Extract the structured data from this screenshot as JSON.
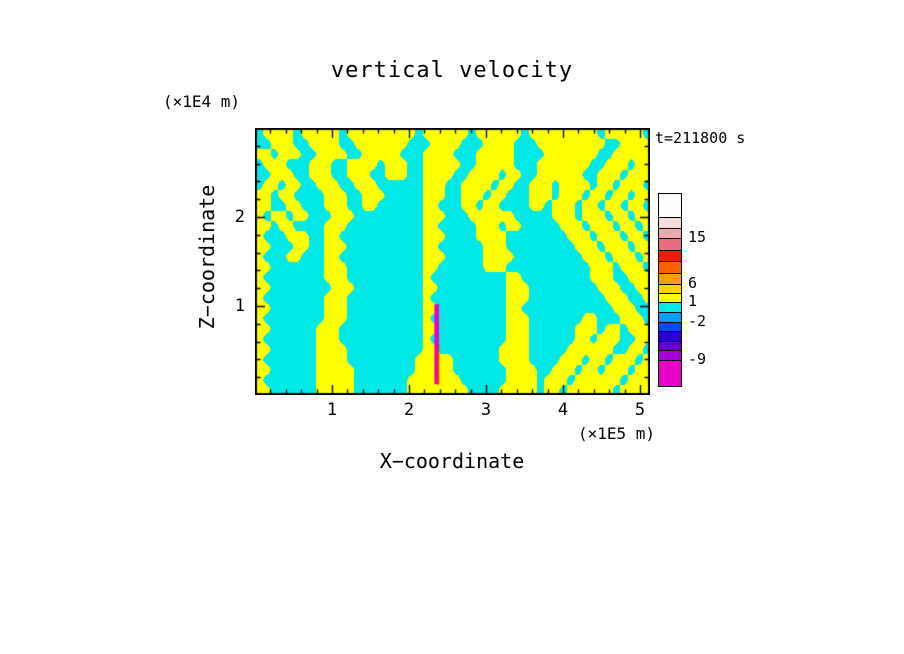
{
  "chart_data": {
    "type": "heatmap",
    "title": "vertical velocity",
    "time_label": "t=211800 s",
    "xlabel": "X−coordinate",
    "ylabel": "Z−coordinate",
    "x_unit_label": "(×1E5 m)",
    "z_unit_label": "(×1E4 m)",
    "x_range": [
      0,
      5.13
    ],
    "z_range": [
      0,
      3.0
    ],
    "x_ticks": [
      1,
      2,
      3,
      4,
      5
    ],
    "z_ticks": [
      1,
      2
    ],
    "minor_tick_step": 0.2,
    "band_values": {
      "cyan_band": [
        -2,
        1
      ],
      "yellow_band": [
        1,
        6
      ]
    },
    "colors": {
      "cyan": "#00e8e8",
      "yellow": "#ffff00",
      "frame": "#000000"
    },
    "field": {
      "cols": 52,
      "rows": 26,
      "comment": "rows top-to-bottom; yellow_runs = inclusive [startCol,endCol] spans of updraft (yellow, 1..6) regions over cyan (-2..1) background",
      "yellow_runs": [
        [
          [
            1,
            4
          ],
          [
            6,
            10
          ],
          [
            12,
            20
          ],
          [
            22,
            27
          ],
          [
            29,
            34
          ],
          [
            36,
            44
          ],
          [
            46,
            50
          ]
        ],
        [
          [
            2,
            4
          ],
          [
            7,
            10
          ],
          [
            13,
            19
          ],
          [
            23,
            26
          ],
          [
            30,
            33
          ],
          [
            37,
            45
          ],
          [
            48,
            51
          ]
        ],
        [
          [
            0,
            1
          ],
          [
            3,
            5
          ],
          [
            8,
            11
          ],
          [
            14,
            18
          ],
          [
            22,
            25
          ],
          [
            29,
            33
          ],
          [
            38,
            44
          ],
          [
            47,
            51
          ]
        ],
        [
          [
            1,
            3
          ],
          [
            7,
            9
          ],
          [
            12,
            15
          ],
          [
            17,
            19
          ],
          [
            22,
            26
          ],
          [
            29,
            33
          ],
          [
            37,
            43
          ],
          [
            46,
            48
          ],
          [
            50,
            51
          ]
        ],
        [
          [
            2,
            4
          ],
          [
            7,
            9
          ],
          [
            12,
            14
          ],
          [
            17,
            19
          ],
          [
            22,
            25
          ],
          [
            28,
            31
          ],
          [
            33,
            34
          ],
          [
            37,
            42
          ],
          [
            45,
            47
          ],
          [
            49,
            51
          ]
        ],
        [
          [
            1,
            2
          ],
          [
            4,
            5
          ],
          [
            8,
            10
          ],
          [
            13,
            15
          ],
          [
            22,
            24
          ],
          [
            27,
            30
          ],
          [
            32,
            33
          ],
          [
            36,
            38
          ],
          [
            40,
            43
          ],
          [
            45,
            46
          ],
          [
            48,
            50
          ]
        ],
        [
          [
            0,
            1
          ],
          [
            3,
            4
          ],
          [
            9,
            11
          ],
          [
            14,
            16
          ],
          [
            22,
            24
          ],
          [
            27,
            29
          ],
          [
            31,
            32
          ],
          [
            36,
            38
          ],
          [
            40,
            42
          ],
          [
            44,
            45
          ],
          [
            47,
            48
          ],
          [
            50,
            51
          ]
        ],
        [
          [
            0,
            1
          ],
          [
            4,
            5
          ],
          [
            9,
            11
          ],
          [
            14,
            15
          ],
          [
            22,
            23
          ],
          [
            27,
            28
          ],
          [
            30,
            31
          ],
          [
            36,
            37
          ],
          [
            39,
            41
          ],
          [
            43,
            44
          ],
          [
            46,
            47
          ],
          [
            49,
            50
          ]
        ],
        [
          [
            0,
            0
          ],
          [
            2,
            3
          ],
          [
            5,
            6
          ],
          [
            10,
            12
          ],
          [
            22,
            24
          ],
          [
            28,
            30
          ],
          [
            31,
            33
          ],
          [
            39,
            41
          ],
          [
            43,
            45
          ],
          [
            47,
            48
          ],
          [
            50,
            51
          ]
        ],
        [
          [
            0,
            1
          ],
          [
            3,
            4
          ],
          [
            9,
            11
          ],
          [
            22,
            23
          ],
          [
            29,
            31
          ],
          [
            33,
            34
          ],
          [
            40,
            42
          ],
          [
            44,
            46
          ],
          [
            48,
            49
          ],
          [
            51,
            51
          ]
        ],
        [
          [
            0,
            0
          ],
          [
            4,
            6
          ],
          [
            9,
            10
          ],
          [
            22,
            24
          ],
          [
            29,
            32
          ],
          [
            41,
            43
          ],
          [
            45,
            47
          ],
          [
            49,
            50
          ]
        ],
        [
          [
            0,
            1
          ],
          [
            5,
            6
          ],
          [
            9,
            11
          ],
          [
            22,
            23
          ],
          [
            30,
            32
          ],
          [
            42,
            44
          ],
          [
            46,
            48
          ],
          [
            50,
            51
          ]
        ],
        [
          [
            0,
            0
          ],
          [
            4,
            5
          ],
          [
            9,
            10
          ],
          [
            22,
            24
          ],
          [
            30,
            33
          ],
          [
            43,
            45
          ],
          [
            47,
            49
          ],
          [
            51,
            51
          ]
        ],
        [
          [
            0,
            1
          ],
          [
            9,
            11
          ],
          [
            22,
            23
          ],
          [
            30,
            32
          ],
          [
            44,
            46
          ],
          [
            48,
            50
          ]
        ],
        [
          [
            0,
            0
          ],
          [
            9,
            11
          ],
          [
            22,
            22
          ],
          [
            33,
            34
          ],
          [
            44,
            46
          ],
          [
            49,
            51
          ]
        ],
        [
          [
            0,
            1
          ],
          [
            10,
            12
          ],
          [
            22,
            23
          ],
          [
            33,
            35
          ],
          [
            45,
            47
          ],
          [
            50,
            51
          ]
        ],
        [
          [
            0,
            0
          ],
          [
            9,
            11
          ],
          [
            22,
            22
          ],
          [
            33,
            35
          ],
          [
            46,
            48
          ],
          [
            51,
            51
          ]
        ],
        [
          [
            0,
            1
          ],
          [
            9,
            11
          ],
          [
            22,
            23
          ],
          [
            33,
            34
          ],
          [
            47,
            49
          ]
        ],
        [
          [
            0,
            0
          ],
          [
            9,
            11
          ],
          [
            22,
            22
          ],
          [
            33,
            35
          ],
          [
            43,
            44
          ],
          [
            48,
            50
          ]
        ],
        [
          [
            0,
            1
          ],
          [
            8,
            10
          ],
          [
            22,
            23
          ],
          [
            33,
            35
          ],
          [
            42,
            44
          ],
          [
            46,
            47
          ],
          [
            49,
            51
          ]
        ],
        [
          [
            0,
            0
          ],
          [
            8,
            10
          ],
          [
            22,
            22
          ],
          [
            33,
            35
          ],
          [
            42,
            43
          ],
          [
            45,
            47
          ],
          [
            50,
            51
          ]
        ],
        [
          [
            0,
            1
          ],
          [
            8,
            11
          ],
          [
            22,
            23
          ],
          [
            32,
            35
          ],
          [
            41,
            43
          ],
          [
            44,
            46
          ],
          [
            49,
            50
          ]
        ],
        [
          [
            0,
            0
          ],
          [
            8,
            11
          ],
          [
            21,
            25
          ],
          [
            32,
            35
          ],
          [
            40,
            42
          ],
          [
            44,
            45
          ],
          [
            47,
            49
          ],
          [
            51,
            51
          ]
        ],
        [
          [
            0,
            1
          ],
          [
            8,
            12
          ],
          [
            21,
            25
          ],
          [
            33,
            36
          ],
          [
            39,
            41
          ],
          [
            43,
            44
          ],
          [
            46,
            48
          ],
          [
            50,
            51
          ]
        ],
        [
          [
            0,
            0
          ],
          [
            8,
            12
          ],
          [
            20,
            26
          ],
          [
            33,
            36
          ],
          [
            38,
            40
          ],
          [
            42,
            44
          ],
          [
            45,
            47
          ],
          [
            49,
            51
          ]
        ],
        [
          [
            0,
            1
          ],
          [
            8,
            12
          ],
          [
            20,
            27
          ],
          [
            32,
            36
          ],
          [
            38,
            39
          ],
          [
            41,
            43
          ],
          [
            44,
            46
          ],
          [
            48,
            51
          ]
        ]
      ]
    },
    "features": [
      {
        "name": "downdraft-streak",
        "color": "#e600c8",
        "x": 2.36,
        "width": 0.06,
        "z0": 0.12,
        "z1": 1.02
      },
      {
        "name": "core-streak",
        "color": "#ff2a00",
        "x": 2.38,
        "width": 0.025,
        "z0": 0.12,
        "z1": 0.55
      }
    ],
    "colorbar": {
      "labels": [
        {
          "text": "15",
          "pos": 0.23
        },
        {
          "text": "6",
          "pos": 0.47
        },
        {
          "text": "1",
          "pos": 0.565
        },
        {
          "text": "-2",
          "pos": 0.665
        },
        {
          "text": "-9",
          "pos": 0.865
        }
      ],
      "segments": [
        {
          "color": "#fdfdfd",
          "from": 0.0,
          "to": 0.12
        },
        {
          "color": "#f6dcdc",
          "from": 0.12,
          "to": 0.175
        },
        {
          "color": "#f0a8b0",
          "from": 0.175,
          "to": 0.23
        },
        {
          "color": "#e86e7e",
          "from": 0.23,
          "to": 0.29
        },
        {
          "color": "#ee1c00",
          "from": 0.29,
          "to": 0.35
        },
        {
          "color": "#ff6000",
          "from": 0.35,
          "to": 0.41
        },
        {
          "color": "#ff9c00",
          "from": 0.41,
          "to": 0.47
        },
        {
          "color": "#ffd200",
          "from": 0.47,
          "to": 0.515
        },
        {
          "color": "#ffff00",
          "from": 0.515,
          "to": 0.565
        },
        {
          "color": "#00e8e8",
          "from": 0.565,
          "to": 0.615
        },
        {
          "color": "#00a0ff",
          "from": 0.615,
          "to": 0.665
        },
        {
          "color": "#0048ff",
          "from": 0.665,
          "to": 0.715
        },
        {
          "color": "#2a00cc",
          "from": 0.715,
          "to": 0.765
        },
        {
          "color": "#6600cc",
          "from": 0.765,
          "to": 0.815
        },
        {
          "color": "#aa00d8",
          "from": 0.815,
          "to": 0.865
        },
        {
          "color": "#e600c8",
          "from": 0.865,
          "to": 1.0
        }
      ]
    }
  }
}
